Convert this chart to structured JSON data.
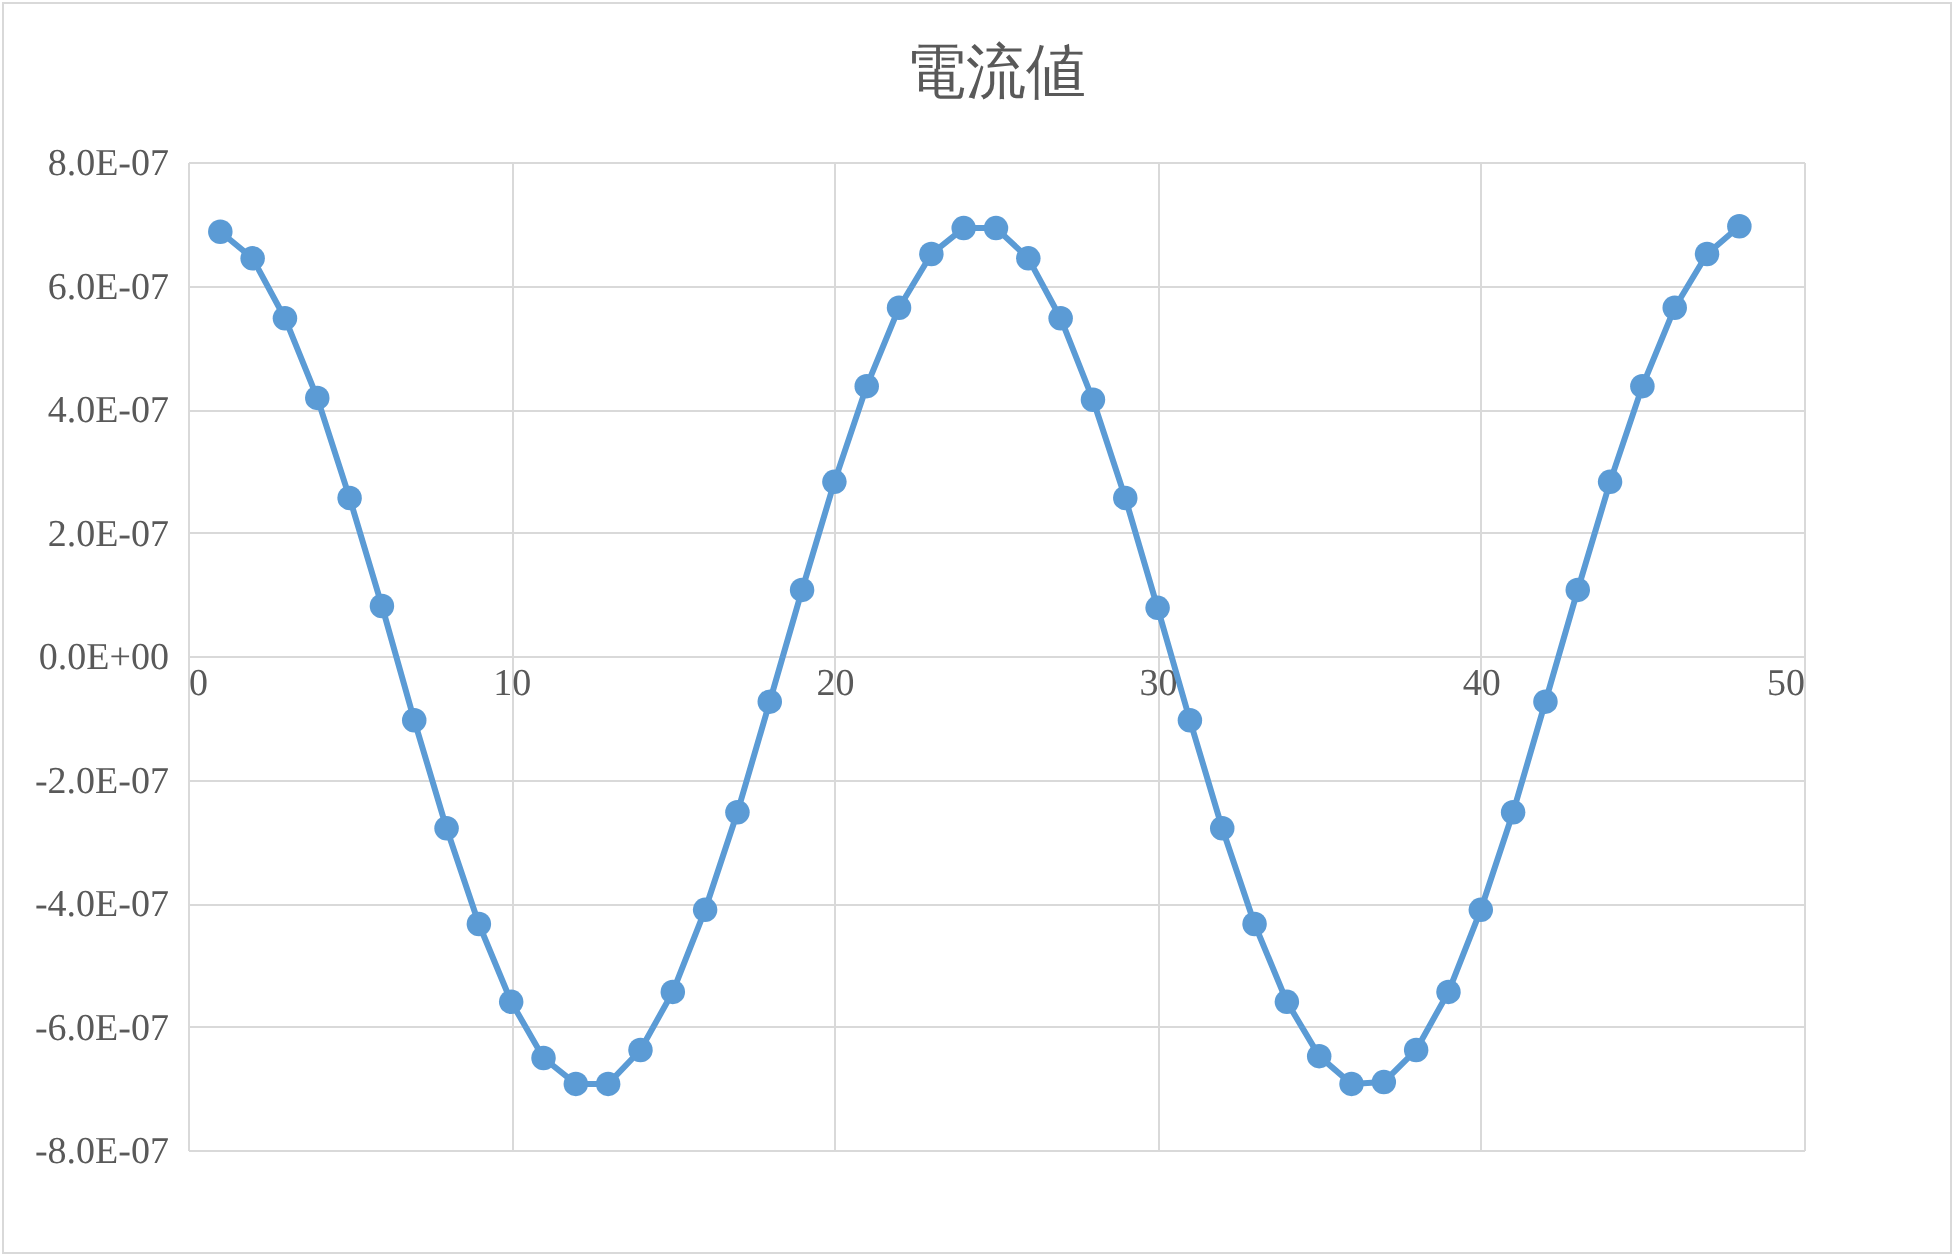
{
  "chart_data": {
    "type": "line",
    "title": "電流値",
    "x": [
      1,
      2,
      3,
      4,
      5,
      6,
      7,
      8,
      9,
      10,
      11,
      12,
      13,
      14,
      15,
      16,
      17,
      18,
      19,
      20,
      21,
      22,
      23,
      24,
      25,
      26,
      27,
      28,
      29,
      30,
      31,
      32,
      33,
      34,
      35,
      36,
      37,
      38,
      39,
      40,
      41,
      42,
      43,
      44,
      45,
      46,
      47,
      48
    ],
    "series": [
      {
        "color": "#5b9bd5",
        "values": [
          6.87e-07,
          6.44e-07,
          5.47e-07,
          4.18e-07,
          2.56e-07,
          8.1e-08,
          -1.04e-07,
          -2.79e-07,
          -4.34e-07,
          -5.6e-07,
          -6.51e-07,
          -6.93e-07,
          -6.93e-07,
          -6.38e-07,
          -5.44e-07,
          -4.11e-07,
          -2.53e-07,
          -7.4e-08,
          1.07e-07,
          2.82e-07,
          4.37e-07,
          5.64e-07,
          6.51e-07,
          6.93e-07,
          6.93e-07,
          6.44e-07,
          5.47e-07,
          4.15e-07,
          2.56e-07,
          7.8e-08,
          -1.04e-07,
          -2.79e-07,
          -4.34e-07,
          -5.6e-07,
          -6.48e-07,
          -6.93e-07,
          -6.9e-07,
          -6.38e-07,
          -5.44e-07,
          -4.11e-07,
          -2.53e-07,
          -7.4e-08,
          1.07e-07,
          2.82e-07,
          4.37e-07,
          5.64e-07,
          6.51e-07,
          6.96e-07
        ]
      }
    ],
    "xlim": [
      0,
      50
    ],
    "xticks": [
      0,
      10,
      20,
      30,
      40,
      50
    ],
    "ylim": [
      -8e-07,
      8e-07
    ],
    "yticks": [
      {
        "value": -8e-07,
        "label": "-8.0E-07"
      },
      {
        "value": -6e-07,
        "label": "-6.0E-07"
      },
      {
        "value": -4e-07,
        "label": "-4.0E-07"
      },
      {
        "value": -2e-07,
        "label": "-2.0E-07"
      },
      {
        "value": 0,
        "label": "0.0E+00"
      },
      {
        "value": 2e-07,
        "label": "2.0E-07"
      },
      {
        "value": 4e-07,
        "label": "4.0E-07"
      },
      {
        "value": 6e-07,
        "label": "6.0E-07"
      },
      {
        "value": 8e-07,
        "label": "8.0E-07"
      }
    ],
    "grid": true,
    "marker": "circle",
    "line_style": "solid"
  }
}
